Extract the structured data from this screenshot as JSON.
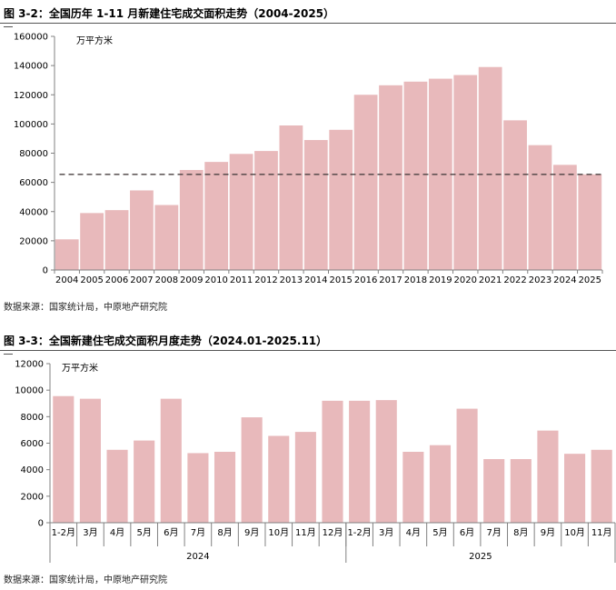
{
  "figures": [
    {
      "title": "图 3-2：全国历年 1-11 月新建住宅成交面积走势（2004-2025）",
      "source": "数据来源：国家统计局，中原地产研究院"
    },
    {
      "title": "图 3-3：全国新建住宅成交面积月度走势（2024.01-2025.11）",
      "source": "数据来源：国家统计局，中原地产研究院"
    }
  ],
  "chart_data": [
    {
      "type": "bar",
      "unit_label": "万平方米",
      "categories": [
        "2004",
        "2005",
        "2006",
        "2007",
        "2008",
        "2009",
        "2010",
        "2011",
        "2012",
        "2013",
        "2014",
        "2015",
        "2016",
        "2017",
        "2018",
        "2019",
        "2020",
        "2021",
        "2022",
        "2023",
        "2024",
        "2025"
      ],
      "values": [
        21000,
        39000,
        41000,
        54500,
        44500,
        68500,
        74000,
        79500,
        81500,
        99000,
        89000,
        96000,
        120000,
        126500,
        129000,
        131000,
        133500,
        139000,
        102500,
        85500,
        72000,
        65500
      ],
      "reference_line": 65500,
      "ylim": [
        0,
        160000
      ],
      "yticks": [
        0,
        20000,
        40000,
        60000,
        80000,
        100000,
        120000,
        140000,
        160000
      ],
      "bar_color": "#e8b9bb",
      "grid": false
    },
    {
      "type": "bar",
      "unit_label": "万平方米",
      "categories": [
        "1-2月",
        "3月",
        "4月",
        "5月",
        "6月",
        "7月",
        "8月",
        "9月",
        "10月",
        "11月",
        "12月",
        "1-2月",
        "3月",
        "4月",
        "5月",
        "6月",
        "7月",
        "8月",
        "9月",
        "10月",
        "11月"
      ],
      "groups": [
        {
          "label": "2024",
          "count": 11
        },
        {
          "label": "2025",
          "count": 10
        }
      ],
      "values": [
        9550,
        9350,
        5500,
        6200,
        9350,
        5250,
        5350,
        7950,
        6550,
        6850,
        9200,
        9200,
        9250,
        5350,
        5850,
        8600,
        4800,
        4800,
        6950,
        5200,
        5500
      ],
      "ylim": [
        0,
        12000
      ],
      "yticks": [
        0,
        2000,
        4000,
        6000,
        8000,
        10000,
        12000
      ],
      "bar_color": "#e8b9bb",
      "grid": false
    }
  ]
}
